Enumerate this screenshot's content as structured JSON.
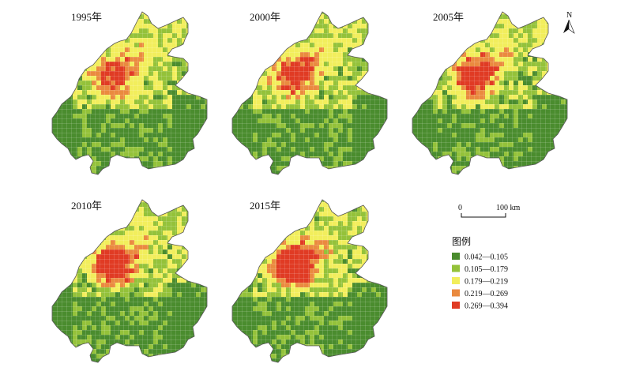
{
  "panels": [
    {
      "year": "1995年"
    },
    {
      "year": "2000年"
    },
    {
      "year": "2005年"
    },
    {
      "year": "2010年"
    },
    {
      "year": "2015年"
    }
  ],
  "north": {
    "label": "N",
    "icon": "north-arrow-icon"
  },
  "scale": {
    "zero": "0",
    "end": "100 km"
  },
  "legend": {
    "title": "图例",
    "classes": [
      {
        "label": "0.042—0.105",
        "color": "#4a8c2e"
      },
      {
        "label": "0.105—0.179",
        "color": "#94c23a"
      },
      {
        "label": "0.179—0.219",
        "color": "#f2ee5c"
      },
      {
        "label": "0.219—0.269",
        "color": "#ea8a3f"
      },
      {
        "label": "0.269—0.394",
        "color": "#e03b24"
      }
    ]
  }
}
